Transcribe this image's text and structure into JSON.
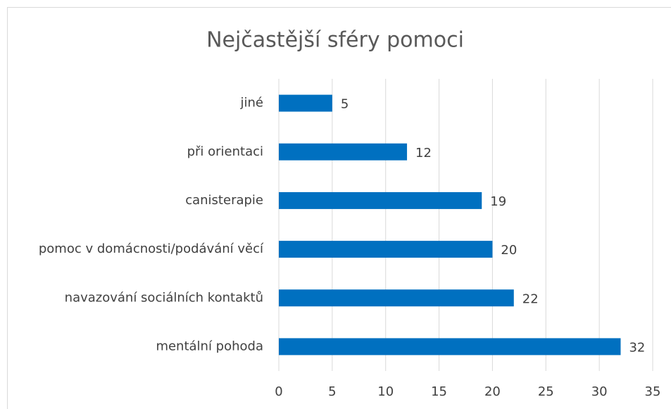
{
  "chart_data": {
    "type": "bar",
    "orientation": "horizontal",
    "title": "Nejčastější sféry pomoci",
    "categories": [
      "jiné",
      "při orientaci",
      "canisterapie",
      "pomoc v domácnosti/podávání věcí",
      "navazování sociálních kontaktů",
      "mentální pohoda"
    ],
    "values": [
      5,
      12,
      19,
      20,
      22,
      32
    ],
    "color": "#0070c0",
    "xlim": [
      0,
      35
    ],
    "xticks": [
      0,
      5,
      10,
      15,
      20,
      25,
      30,
      35
    ],
    "grid": true
  }
}
